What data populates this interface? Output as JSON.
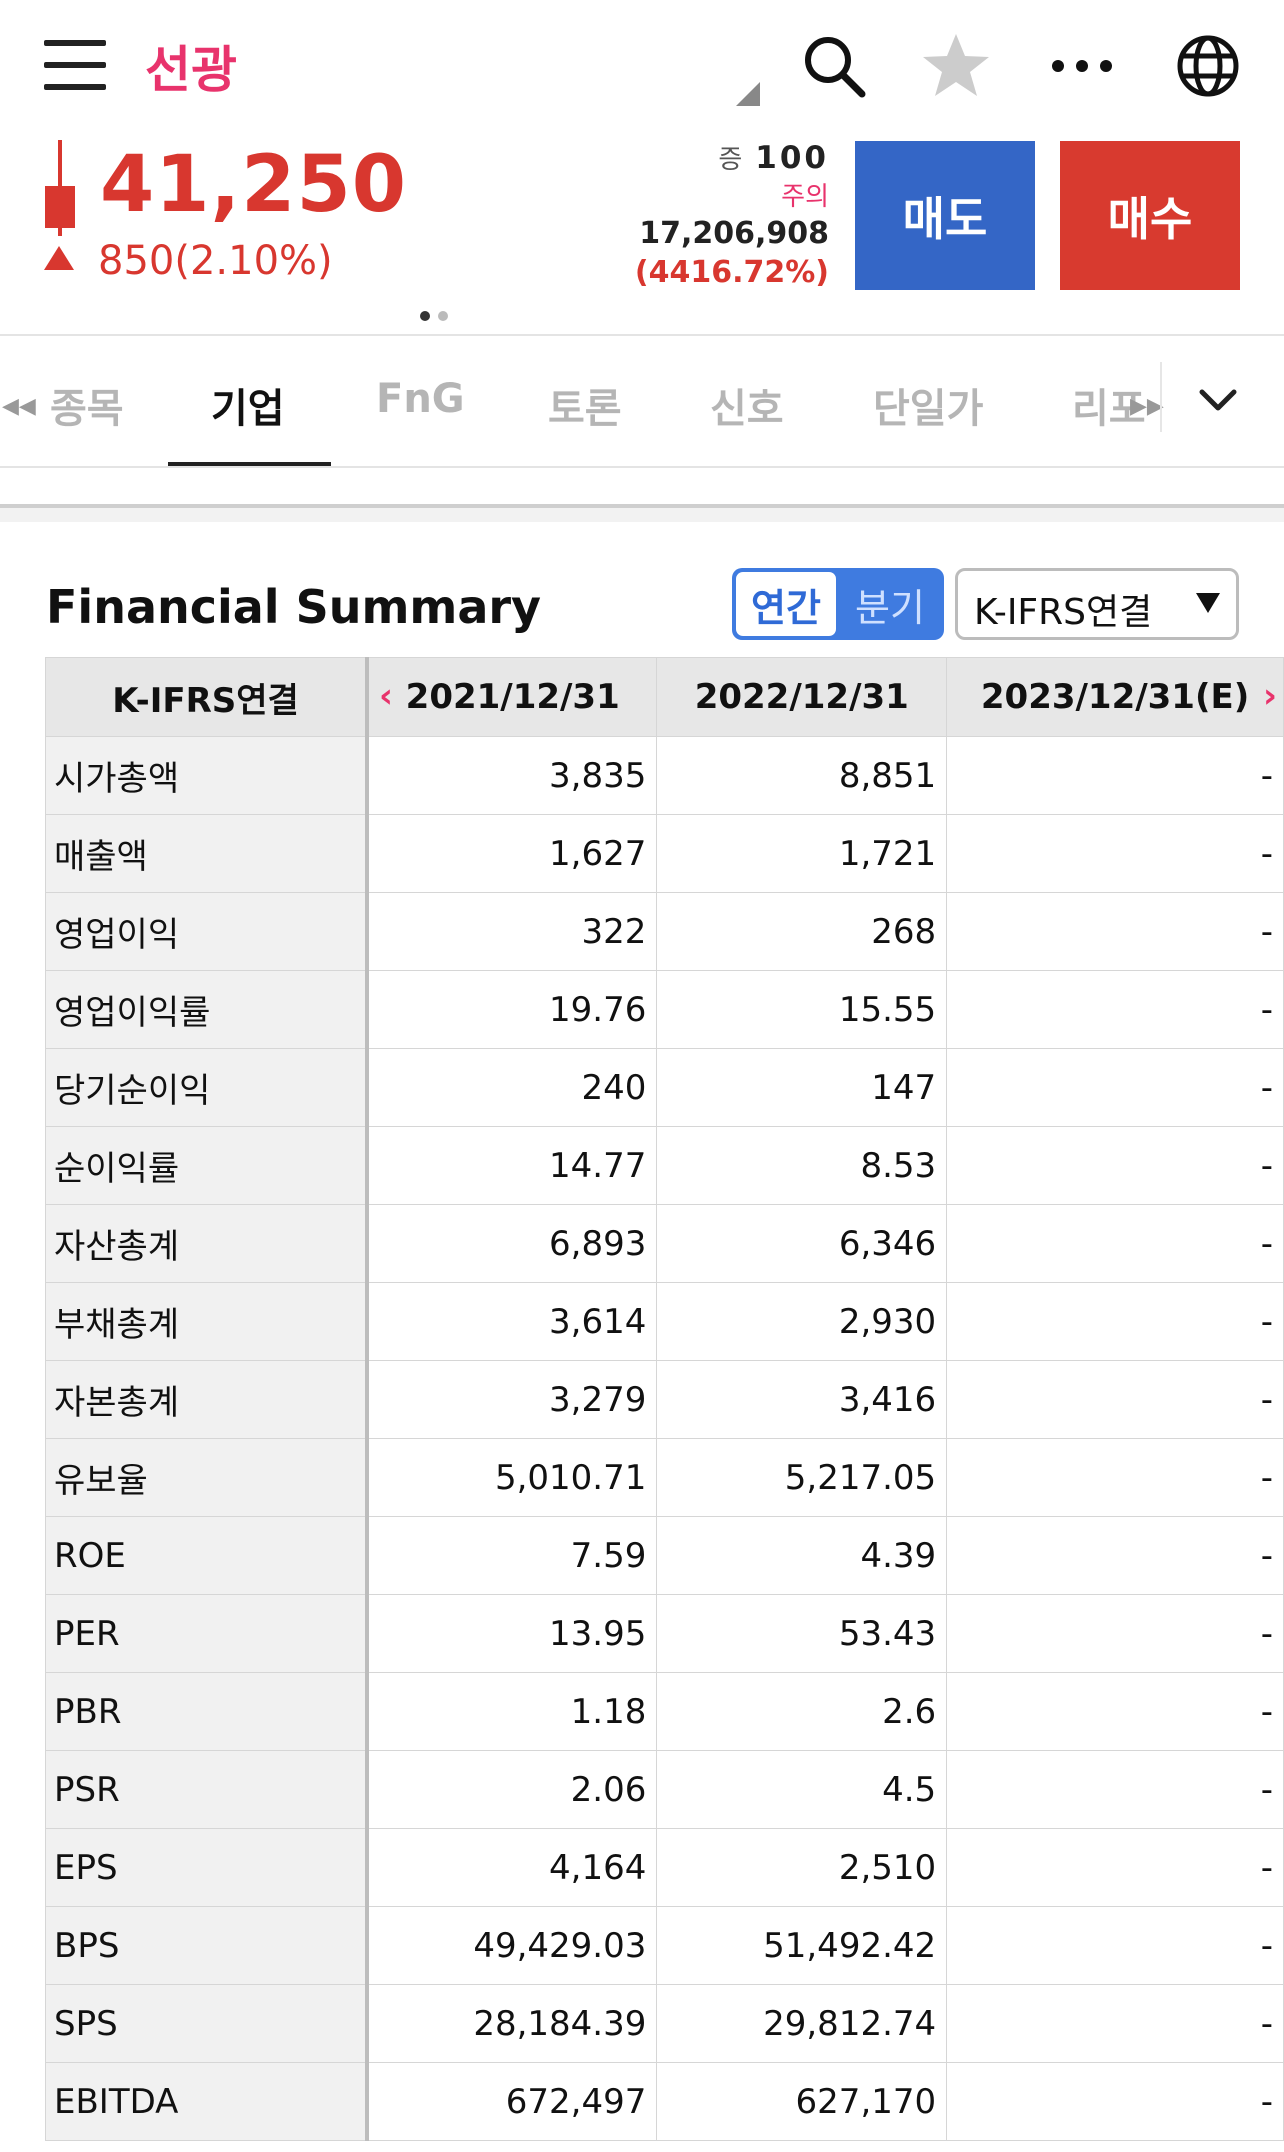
{
  "header": {
    "stock_name": "선광",
    "icons": [
      "menu-icon",
      "search-icon",
      "star-icon",
      "more-icon",
      "globe-icon"
    ]
  },
  "quote": {
    "price": "41,250",
    "change": "850(2.10%)",
    "margin_label": "증",
    "margin_value": "100",
    "warning": "주의",
    "volume": "17,206,908",
    "volume_ratio": "(4416.72%)",
    "sell_label": "매도",
    "buy_label": "매수",
    "colors": {
      "up": "#d8372f",
      "sell": "#3466c6",
      "buy": "#d83a2f",
      "accent": "#e8336c"
    }
  },
  "tabs": [
    {
      "label": "종목",
      "active": false
    },
    {
      "label": "기업",
      "active": true
    },
    {
      "label": "FnG",
      "active": false
    },
    {
      "label": "토론",
      "active": false
    },
    {
      "label": "신호",
      "active": false
    },
    {
      "label": "단일가",
      "active": false
    },
    {
      "label": "리포",
      "active": false
    }
  ],
  "summary": {
    "title": "Financial Summary",
    "toggle_annual": "연간",
    "toggle_quarter": "분기",
    "select_value": "K-IFRS연결",
    "columns": [
      "K-IFRS연결",
      "2021/12/31",
      "2022/12/31",
      "2023/12/31(E)"
    ],
    "rows": [
      {
        "label": "시가총액",
        "v1": "3,835",
        "v2": "8,851",
        "v3": "-"
      },
      {
        "label": "매출액",
        "v1": "1,627",
        "v2": "1,721",
        "v3": "-"
      },
      {
        "label": "영업이익",
        "v1": "322",
        "v2": "268",
        "v3": "-"
      },
      {
        "label": "영업이익률",
        "v1": "19.76",
        "v2": "15.55",
        "v3": "-"
      },
      {
        "label": "당기순이익",
        "v1": "240",
        "v2": "147",
        "v3": "-"
      },
      {
        "label": "순이익률",
        "v1": "14.77",
        "v2": "8.53",
        "v3": "-"
      },
      {
        "label": "자산총계",
        "v1": "6,893",
        "v2": "6,346",
        "v3": "-"
      },
      {
        "label": "부채총계",
        "v1": "3,614",
        "v2": "2,930",
        "v3": "-"
      },
      {
        "label": "자본총계",
        "v1": "3,279",
        "v2": "3,416",
        "v3": "-"
      },
      {
        "label": "유보율",
        "v1": "5,010.71",
        "v2": "5,217.05",
        "v3": "-"
      },
      {
        "label": "ROE",
        "v1": "7.59",
        "v2": "4.39",
        "v3": "-"
      },
      {
        "label": "PER",
        "v1": "13.95",
        "v2": "53.43",
        "v3": "-"
      },
      {
        "label": "PBR",
        "v1": "1.18",
        "v2": "2.6",
        "v3": "-"
      },
      {
        "label": "PSR",
        "v1": "2.06",
        "v2": "4.5",
        "v3": "-"
      },
      {
        "label": "EPS",
        "v1": "4,164",
        "v2": "2,510",
        "v3": "-"
      },
      {
        "label": "BPS",
        "v1": "49,429.03",
        "v2": "51,492.42",
        "v3": "-"
      },
      {
        "label": "SPS",
        "v1": "28,184.39",
        "v2": "29,812.74",
        "v3": "-"
      },
      {
        "label": "EBITDA",
        "v1": "672,497",
        "v2": "627,170",
        "v3": "-"
      }
    ]
  }
}
